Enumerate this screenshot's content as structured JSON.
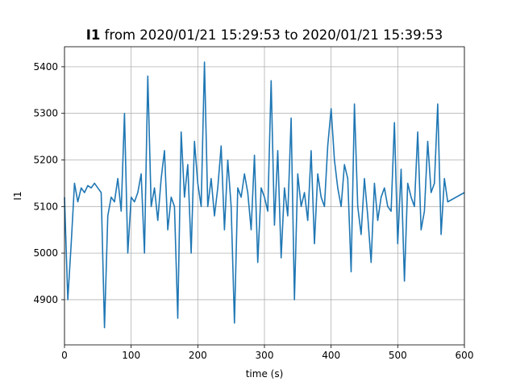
{
  "chart_data": {
    "type": "line",
    "title_bold": "I1",
    "title_rest": " from 2020/01/21 15:29:53 to 2020/01/21 15:39:53",
    "xlabel": "time (s)",
    "ylabel": "I1",
    "xlim": [
      0,
      600
    ],
    "ylim": [
      4803,
      5443
    ],
    "xticks": [
      0,
      100,
      200,
      300,
      400,
      500,
      600
    ],
    "yticks": [
      4900,
      5000,
      5100,
      5200,
      5300,
      5400
    ],
    "grid": true,
    "series": [
      {
        "color": "#1f77b4",
        "x": [
          0,
          5,
          10,
          15,
          20,
          25,
          30,
          35,
          40,
          45,
          50,
          55,
          60,
          65,
          70,
          75,
          80,
          85,
          90,
          95,
          100,
          105,
          110,
          115,
          120,
          125,
          130,
          135,
          140,
          145,
          150,
          155,
          160,
          165,
          170,
          175,
          180,
          185,
          190,
          195,
          200,
          205,
          210,
          215,
          220,
          225,
          230,
          235,
          240,
          245,
          250,
          255,
          260,
          265,
          270,
          275,
          280,
          285,
          290,
          295,
          300,
          305,
          310,
          315,
          320,
          325,
          330,
          335,
          340,
          345,
          350,
          355,
          360,
          365,
          370,
          375,
          380,
          385,
          390,
          395,
          400,
          405,
          410,
          415,
          420,
          425,
          430,
          435,
          440,
          445,
          450,
          455,
          460,
          465,
          470,
          475,
          480,
          485,
          490,
          495,
          500,
          505,
          510,
          515,
          520,
          525,
          530,
          535,
          540,
          545,
          550,
          555,
          560,
          565,
          570,
          575,
          600
        ],
        "y": [
          5120,
          4900,
          5020,
          5150,
          5110,
          5140,
          5130,
          5145,
          5140,
          5150,
          5140,
          5130,
          4840,
          5080,
          5120,
          5110,
          5160,
          5090,
          5300,
          5000,
          5120,
          5110,
          5130,
          5170,
          5000,
          5380,
          5100,
          5140,
          5070,
          5160,
          5220,
          5050,
          5120,
          5100,
          4860,
          5260,
          5120,
          5190,
          5000,
          5240,
          5150,
          5100,
          5410,
          5100,
          5160,
          5080,
          5140,
          5230,
          5050,
          5200,
          5100,
          4850,
          5140,
          5120,
          5170,
          5130,
          5050,
          5210,
          4980,
          5140,
          5120,
          5090,
          5370,
          5060,
          5220,
          4990,
          5140,
          5080,
          5290,
          4900,
          5170,
          5100,
          5130,
          5070,
          5220,
          5020,
          5170,
          5120,
          5100,
          5230,
          5310,
          5200,
          5140,
          5100,
          5190,
          5160,
          4960,
          5320,
          5100,
          5040,
          5160,
          5080,
          4980,
          5150,
          5070,
          5120,
          5140,
          5100,
          5090,
          5280,
          5020,
          5180,
          4940,
          5150,
          5120,
          5100,
          5260,
          5050,
          5090,
          5240,
          5130,
          5150,
          5320,
          5040,
          5160,
          5110,
          5130
        ]
      }
    ]
  }
}
